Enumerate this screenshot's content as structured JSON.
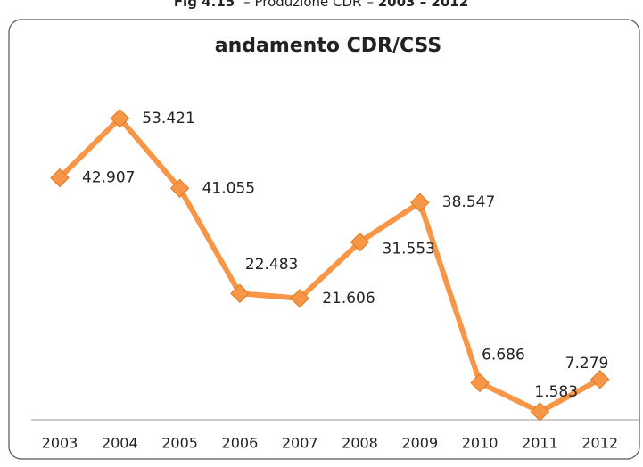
{
  "caption": {
    "label": "Fig 4.15",
    "text": "Produzione CDR",
    "range": "2003 – 2012"
  },
  "chart_data": {
    "type": "line",
    "title": "andamento CDR/CSS",
    "categories": [
      "2003",
      "2004",
      "2005",
      "2006",
      "2007",
      "2008",
      "2009",
      "2010",
      "2011",
      "2012"
    ],
    "values": [
      42.907,
      53.421,
      41.055,
      22.483,
      21.606,
      31.553,
      38.547,
      6.686,
      1.583,
      7.279
    ],
    "color": "#f79646",
    "grid": false
  }
}
